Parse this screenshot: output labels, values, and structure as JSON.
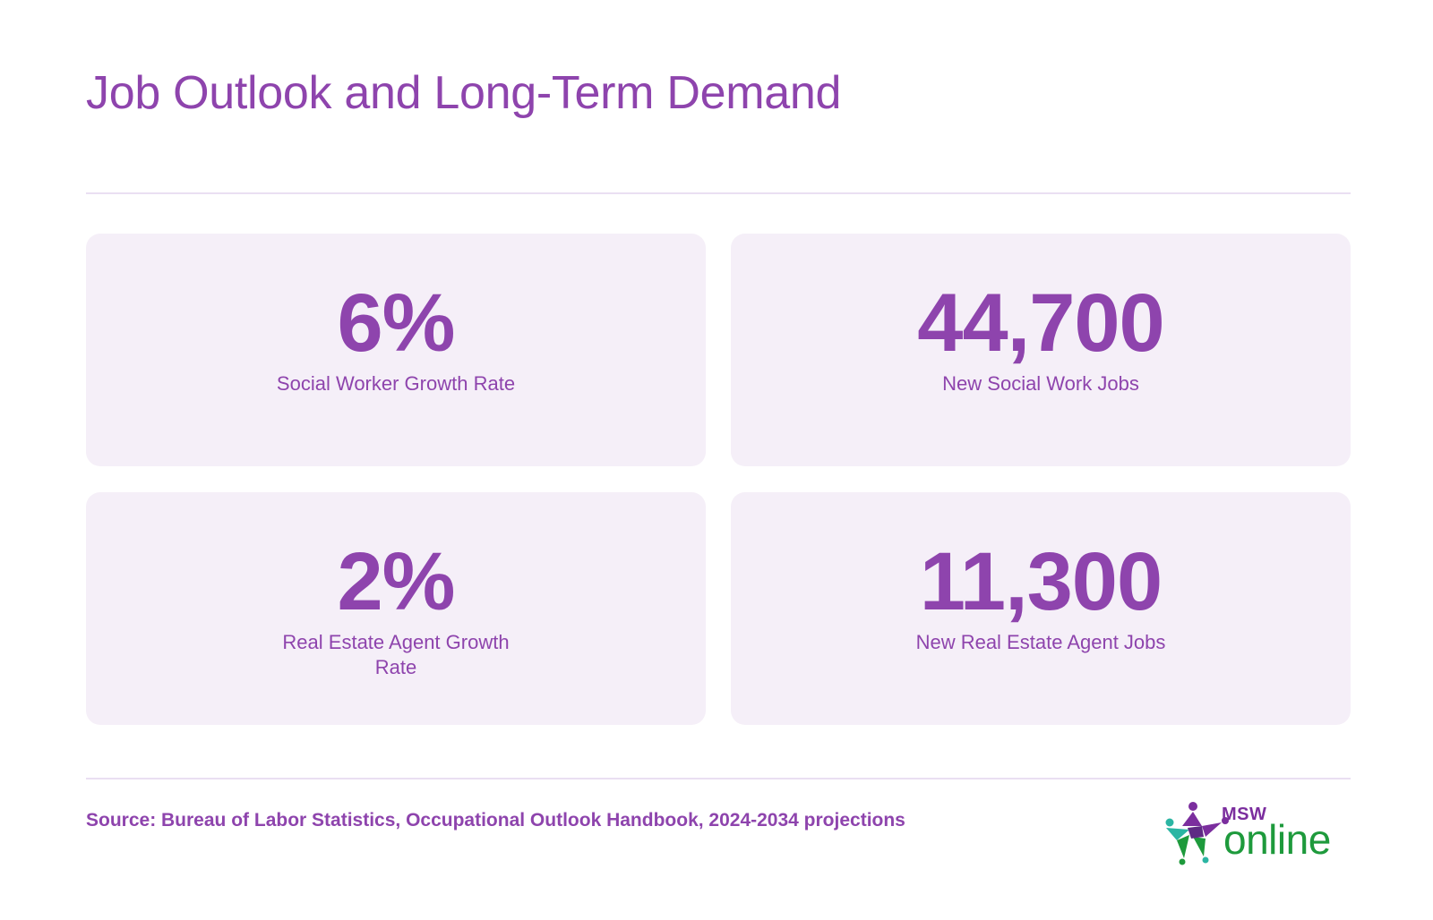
{
  "title": "Job Outlook and Long-Term Demand",
  "stats": [
    {
      "value": "6%",
      "label": "Social Worker Growth Rate"
    },
    {
      "value": "44,700",
      "label": "New Social Work Jobs"
    },
    {
      "value": "2%",
      "label": "Real Estate Agent Growth Rate"
    },
    {
      "value": "11,300",
      "label": "New Real Estate Agent Jobs"
    }
  ],
  "source": "Source: Bureau of Labor Statistics, Occupational Outlook Handbook, 2024-2034 projections",
  "logo": {
    "top_text": "MSW",
    "main_text": "online"
  },
  "colors": {
    "accent_purple": "#8e44ad",
    "card_background": "#f5eff8",
    "divider": "#eadff2",
    "logo_green": "#1e9a3c",
    "logo_purple": "#7b2e9e",
    "logo_teal": "#2bb5a3"
  }
}
